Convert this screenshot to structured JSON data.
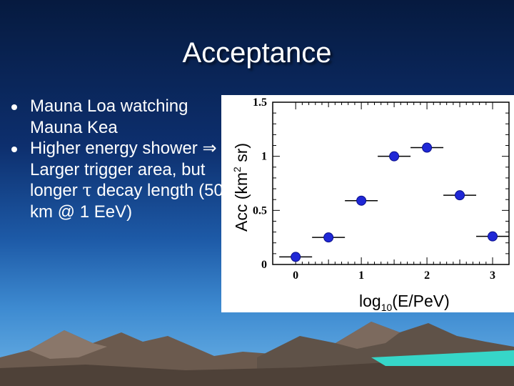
{
  "slide": {
    "title": "Acceptance",
    "bullets": [
      {
        "text": "Mauna Loa watching Mauna Kea"
      },
      {
        "pre": "Higher energy shower ",
        "arrow": "⇒",
        "mid": " Larger trigger area, but longer ",
        "tau": "τ",
        "post": " decay length (50 km @ 1 EeV)"
      }
    ]
  },
  "chart_data": {
    "type": "scatter",
    "x": [
      0,
      0.5,
      1,
      1.5,
      2,
      2.5,
      3
    ],
    "y": [
      0.07,
      0.25,
      0.59,
      1.0,
      1.08,
      0.64,
      0.26
    ],
    "x_err": [
      0.25,
      0.25,
      0.25,
      0.25,
      0.25,
      0.25,
      0.25
    ],
    "xlim": [
      -0.35,
      3.25
    ],
    "ylim": [
      0,
      1.5
    ],
    "x_ticks": [
      "0",
      "1",
      "2",
      "3"
    ],
    "y_ticks": [
      "0",
      "0.5",
      "1",
      "1.5"
    ],
    "xlabel": {
      "base": "log",
      "sub": "10",
      "rest": "(E/PeV)"
    },
    "ylabel": {
      "base": "Acc (km",
      "sup": "2",
      "rest": " sr)"
    },
    "marker_color": "#1f27d6",
    "grid": false
  }
}
